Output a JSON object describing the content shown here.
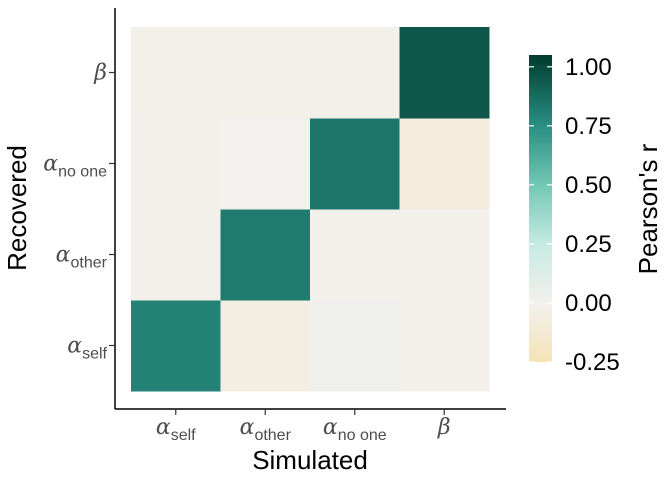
{
  "chart_data": {
    "type": "heatmap",
    "xlabel": "Simulated",
    "ylabel": "Recovered",
    "x_categories": [
      {
        "base": "α",
        "sub": "self"
      },
      {
        "base": "α",
        "sub": "other"
      },
      {
        "base": "α",
        "sub": "no one"
      },
      {
        "base": "β",
        "sub": ""
      }
    ],
    "y_categories": [
      {
        "base": "α",
        "sub": "self"
      },
      {
        "base": "α",
        "sub": "other"
      },
      {
        "base": "α",
        "sub": "no one"
      },
      {
        "base": "β",
        "sub": ""
      }
    ],
    "values": [
      [
        0.8,
        -0.06,
        0.02,
        -0.01
      ],
      [
        -0.01,
        0.82,
        -0.01,
        -0.01
      ],
      [
        -0.01,
        0.0,
        0.84,
        -0.07
      ],
      [
        -0.02,
        -0.02,
        -0.02,
        0.95
      ]
    ],
    "colorbar": {
      "title": "Pearson's r",
      "min": -0.25,
      "max": 1.05,
      "ticks": [
        1.0,
        0.75,
        0.5,
        0.25,
        0.0,
        -0.25
      ],
      "tick_labels": [
        "1.00",
        "0.75",
        "0.50",
        "0.25",
        "0.00",
        "-0.25"
      ],
      "colors": [
        {
          "v": -0.25,
          "c": "#f5e3b6"
        },
        {
          "v": 0.0,
          "c": "#f3f1ee"
        },
        {
          "v": 0.25,
          "c": "#c6eae1"
        },
        {
          "v": 0.5,
          "c": "#72c7b4"
        },
        {
          "v": 0.75,
          "c": "#2a8f83"
        },
        {
          "v": 1.05,
          "c": "#003b2e"
        }
      ]
    }
  }
}
